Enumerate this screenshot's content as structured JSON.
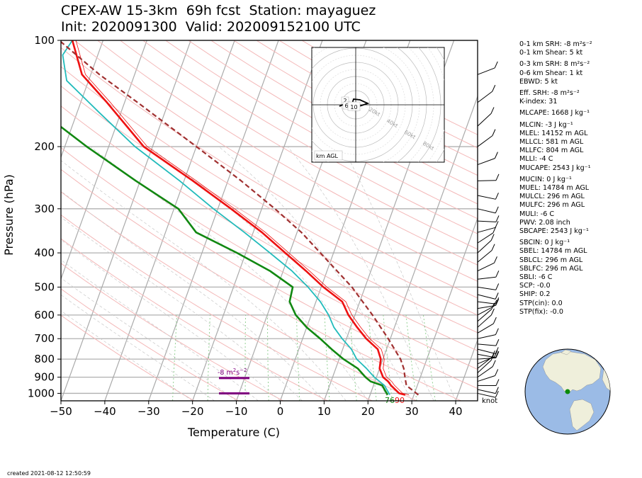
{
  "header": {
    "line1": "CPEX-AW 15-3km  69h fcst  Station: mayaguez",
    "line2": "Init: 2020091300  Valid: 202009152100 UTC"
  },
  "footer": {
    "created": "created 2021-08-12 12:50:59"
  },
  "colors": {
    "temperature": "#ee1111",
    "dewpoint": "#118811",
    "wetbulb": "#22bbbb",
    "parcel": "#a03030",
    "srh": "#800080",
    "isotherm": "#aaaaaa",
    "dry_adiabat": "#f4b8b8",
    "mixing_ratio": "#88cc88"
  },
  "chart_data": {
    "type": "line",
    "chart_kind": "skew-T log-P",
    "xlabel": "Temperature (C)",
    "ylabel": "Pressure (hPa)",
    "xlim": [
      -50,
      45
    ],
    "ylim": [
      1050,
      100
    ],
    "y_scale": "log",
    "x_ticks": [
      -50,
      -40,
      -30,
      -20,
      -10,
      0,
      10,
      20,
      30,
      40
    ],
    "y_ticks": [
      100,
      200,
      300,
      400,
      500,
      600,
      700,
      800,
      900,
      1000
    ],
    "series": [
      {
        "key": "temperature",
        "points": [
          [
            1010,
            28
          ],
          [
            1000,
            26.5
          ],
          [
            950,
            24
          ],
          [
            925,
            23
          ],
          [
            900,
            21.5
          ],
          [
            850,
            20
          ],
          [
            800,
            19.5
          ],
          [
            750,
            18
          ],
          [
            700,
            14.5
          ],
          [
            650,
            11.5
          ],
          [
            600,
            8.5
          ],
          [
            550,
            6
          ],
          [
            500,
            0.5
          ],
          [
            450,
            -4.8
          ],
          [
            400,
            -11
          ],
          [
            350,
            -18
          ],
          [
            300,
            -27
          ],
          [
            250,
            -38
          ],
          [
            200,
            -52
          ],
          [
            150,
            -64
          ],
          [
            125,
            -72
          ],
          [
            100,
            -77
          ]
        ]
      },
      {
        "key": "dewpoint",
        "points": [
          [
            1010,
            24
          ],
          [
            980,
            23
          ],
          [
            950,
            22
          ],
          [
            925,
            19
          ],
          [
            900,
            17.5
          ],
          [
            850,
            15
          ],
          [
            800,
            11
          ],
          [
            750,
            7.5
          ],
          [
            700,
            4
          ],
          [
            650,
            0
          ],
          [
            600,
            -3.5
          ],
          [
            550,
            -6
          ],
          [
            500,
            -6.5
          ],
          [
            450,
            -13
          ],
          [
            400,
            -22
          ],
          [
            350,
            -33
          ],
          [
            300,
            -39
          ],
          [
            250,
            -51
          ],
          [
            200,
            -65
          ],
          [
            160,
            -78
          ],
          [
            130,
            -82
          ],
          [
            100,
            -85
          ]
        ]
      },
      {
        "key": "wetbulb",
        "points": [
          [
            1010,
            24.5
          ],
          [
            950,
            22.5
          ],
          [
            900,
            19.5
          ],
          [
            850,
            17
          ],
          [
            800,
            14
          ],
          [
            750,
            12
          ],
          [
            700,
            9
          ],
          [
            650,
            6.2
          ],
          [
            600,
            4
          ],
          [
            550,
            1
          ],
          [
            500,
            -3
          ],
          [
            450,
            -8
          ],
          [
            400,
            -14.5
          ],
          [
            350,
            -22
          ],
          [
            300,
            -31
          ],
          [
            250,
            -41
          ],
          [
            200,
            -54
          ],
          [
            160,
            -65
          ],
          [
            130,
            -75
          ],
          [
            110,
            -78
          ],
          [
            100,
            -77
          ]
        ]
      },
      {
        "key": "parcel",
        "points": [
          [
            1010,
            31
          ],
          [
            950,
            27.5
          ],
          [
            900,
            26.5
          ],
          [
            850,
            25.5
          ],
          [
            800,
            24
          ],
          [
            700,
            19.5
          ],
          [
            600,
            14
          ],
          [
            500,
            7
          ],
          [
            400,
            -3
          ],
          [
            350,
            -9
          ],
          [
            300,
            -17
          ],
          [
            250,
            -27
          ],
          [
            200,
            -40
          ],
          [
            150,
            -57
          ],
          [
            125,
            -68
          ],
          [
            100,
            -80
          ]
        ]
      }
    ],
    "lcl_labels": [
      "76",
      "90"
    ],
    "srh_annotation": "-8 m$^2$s$^{-2}$",
    "srh_label_parts": {
      "value": "-8 m",
      "exp1": "2",
      "mid": "s",
      "exp2": "−2"
    },
    "barbs_unit": "knot",
    "hodograph": {
      "label": "km AGL",
      "height_labels": [
        "2",
        "6",
        "10"
      ],
      "ring_labels": [
        "20kt",
        "40kt",
        "60kt",
        "80kt"
      ]
    }
  },
  "indices": [
    "0-1 km SRH: -8 m²s⁻²",
    "0-1 km Shear: 5 kt",
    "",
    "0-3 km SRH: 8 m²s⁻²",
    "0-6 km Shear: 1 kt",
    "EBWD: 5 kt",
    "",
    "Eff. SRH: -8 m²s⁻²",
    "K-index: 31",
    "",
    "MLCAPE: 1668 J kg⁻¹",
    "",
    "MLCIN: -3 J kg⁻¹",
    "MLEL: 14152 m AGL",
    "MLLCL: 581 m AGL",
    "MLLFC: 804 m AGL",
    "MLLI: -4 C",
    "MUCAPE: 2543 J kg⁻¹",
    "",
    "MUCIN: 0 J kg⁻¹",
    "MUEL: 14784 m AGL",
    "MULCL: 296 m AGL",
    "MULFC: 296 m AGL",
    "MULI: -6 C",
    "PWV: 2.08 inch",
    "SBCAPE: 2543 J kg⁻¹",
    "",
    "SBCIN: 0 J kg⁻¹",
    "SBEL: 14784 m AGL",
    "SBLCL: 296 m AGL",
    "SBLFC: 296 m AGL",
    "SBLI: -6 C",
    "SCP: -0.0",
    "SHIP: 0.2",
    "STP(cin): 0.0",
    "STP(fix): -0.0"
  ]
}
